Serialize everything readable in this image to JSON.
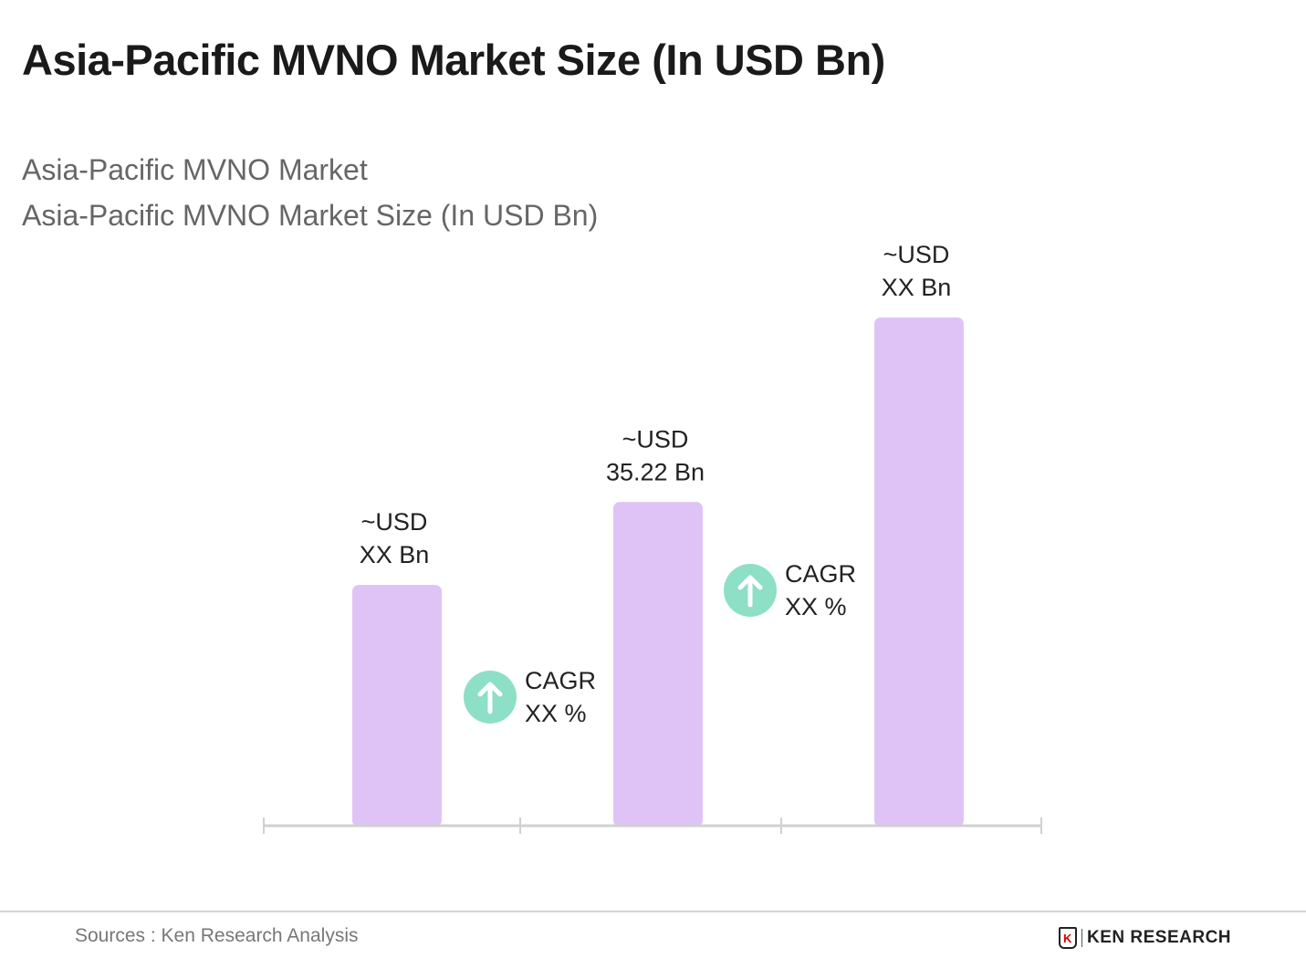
{
  "title": "Asia-Pacific MVNO Market Size (In USD Bn)",
  "subtitle1": "Asia-Pacific MVNO Market",
  "subtitle2": "Asia-Pacific MVNO Market Size (In USD Bn)",
  "chart_data": {
    "type": "bar",
    "categories": [
      "",
      "",
      ""
    ],
    "values": [
      26.2,
      35.22,
      55.3
    ],
    "data_labels": [
      [
        "~USD",
        "XX Bn"
      ],
      [
        "~USD",
        "35.22 Bn"
      ],
      [
        "~USD",
        "XX Bn"
      ]
    ],
    "cagr_labels": [
      [
        "CAGR",
        "XX %"
      ],
      [
        "CAGR",
        "XX %"
      ]
    ],
    "ylim": [
      0,
      55.3
    ],
    "grid": false,
    "bar_color": "#dfc3f6",
    "cagr_icon": "arrow-up-circle-icon",
    "cagr_color": "#8ddfc5",
    "axis_color": "#d0d0d0"
  },
  "footer": {
    "source": "Sources : Ken Research Analysis",
    "logo_text": "KEN RESEARCH"
  }
}
